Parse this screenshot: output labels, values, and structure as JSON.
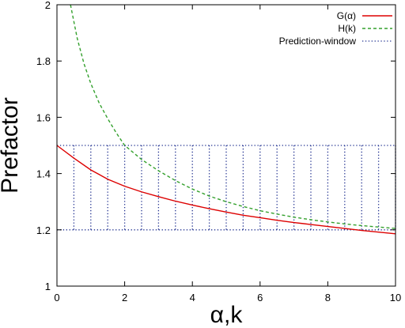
{
  "chart_data": {
    "type": "line",
    "title": "",
    "xlabel": "α,k",
    "ylabel": "Prefactor",
    "xlim": [
      0,
      10
    ],
    "ylim": [
      1,
      2
    ],
    "x_ticks": [
      "0",
      "2",
      "4",
      "6",
      "8",
      "10"
    ],
    "y_ticks": [
      "1",
      "1.2",
      "1.4",
      "1.6",
      "1.8",
      "2"
    ],
    "grid": false,
    "legend_position": "top-right",
    "series": [
      {
        "name": "G(α)",
        "style": "solid",
        "color": "#dd0000",
        "x": [
          0,
          0.5,
          1,
          1.5,
          2,
          2.5,
          3,
          3.5,
          4,
          4.5,
          5,
          5.5,
          6,
          6.5,
          7,
          7.5,
          8,
          8.5,
          9,
          9.5,
          10
        ],
        "y": [
          1.5,
          1.455,
          1.413,
          1.38,
          1.355,
          1.335,
          1.318,
          1.302,
          1.288,
          1.275,
          1.263,
          1.252,
          1.243,
          1.234,
          1.226,
          1.219,
          1.212,
          1.205,
          1.198,
          1.192,
          1.186
        ]
      },
      {
        "name": "H(k)",
        "style": "dashed",
        "color": "#33a02c",
        "x": [
          0.4,
          0.6,
          0.8,
          1.0,
          1.25,
          1.5,
          1.75,
          2.0,
          2.5,
          3.0,
          3.5,
          4.0,
          4.5,
          5.0,
          5.5,
          6.0,
          6.5,
          7.0,
          7.5,
          8.0,
          8.5,
          9.0,
          9.5,
          10.0
        ],
        "y": [
          2.0,
          1.88,
          1.79,
          1.72,
          1.65,
          1.595,
          1.545,
          1.5,
          1.45,
          1.41,
          1.375,
          1.345,
          1.32,
          1.3,
          1.283,
          1.268,
          1.256,
          1.245,
          1.236,
          1.228,
          1.221,
          1.215,
          1.21,
          1.205
        ]
      },
      {
        "name": "Prediction-window",
        "style": "dotted",
        "color": "#1f2f8f",
        "y_band": [
          1.2,
          1.5
        ],
        "x_range": [
          0,
          10
        ],
        "verticals_x": [
          0.5,
          1.0,
          1.5,
          2.0,
          2.5,
          3.0,
          3.5,
          4.0,
          4.5,
          5.0,
          5.5,
          6.0,
          6.5,
          7.0,
          7.5,
          8.0,
          8.5,
          9.0,
          9.5,
          10.0
        ]
      }
    ]
  }
}
